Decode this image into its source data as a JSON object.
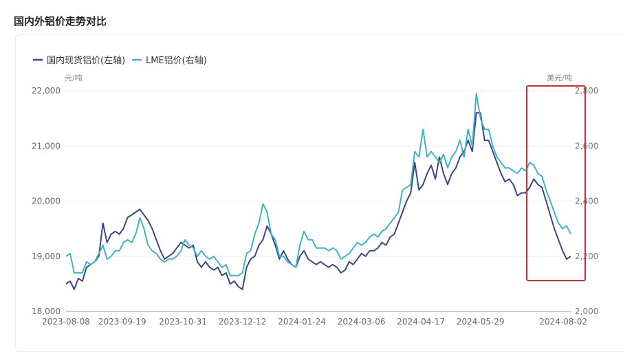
{
  "title": "国内外铝价走势对比",
  "chart_data": {
    "type": "line",
    "legend": [
      "国内现货铝价(左轴)",
      "LME铝价(右轴)"
    ],
    "legend_position": "top-left",
    "left_unit": "元/吨",
    "right_unit": "美元/吨",
    "left_ylim": [
      18000,
      22000
    ],
    "right_ylim": [
      2000,
      2800
    ],
    "left_ticks": [
      "18,000",
      "19,000",
      "20,000",
      "21,000",
      "22,000"
    ],
    "right_ticks": [
      "2,000",
      "2,200",
      "2,400",
      "2,600",
      "2,800"
    ],
    "x_ticks": [
      {
        "label": "2023-08-08",
        "index": 0
      },
      {
        "label": "2023-09-19",
        "index": 13.7
      },
      {
        "label": "2023-10-31",
        "index": 28.5
      },
      {
        "label": "2023-12-12",
        "index": 43
      },
      {
        "label": "2024-01-24",
        "index": 57.5
      },
      {
        "label": "2024-03-06",
        "index": 72
      },
      {
        "label": "2024-04-17",
        "index": 86.5
      },
      {
        "label": "2024-05-29",
        "index": 101
      },
      {
        "label": "2024-08-02",
        "index": 122
      }
    ],
    "series": [
      {
        "name": "国内现货铝价(左轴)",
        "axis": "left",
        "color": "#3b4487",
        "values": [
          18500,
          18550,
          18400,
          18600,
          18550,
          18800,
          18850,
          18900,
          19000,
          19600,
          19250,
          19400,
          19450,
          19400,
          19500,
          19700,
          19750,
          19800,
          19850,
          19750,
          19650,
          19500,
          19300,
          19100,
          18950,
          19000,
          19050,
          19150,
          19250,
          19200,
          19150,
          19200,
          18900,
          18800,
          18900,
          18800,
          18750,
          18800,
          18650,
          18700,
          18500,
          18550,
          18450,
          18400,
          18800,
          18950,
          19000,
          19200,
          19300,
          19550,
          19400,
          19200,
          18950,
          19100,
          18950,
          18850,
          18800,
          19000,
          19100,
          18950,
          18900,
          18850,
          18900,
          18850,
          18800,
          18850,
          18800,
          18700,
          18750,
          18900,
          18850,
          18950,
          19050,
          19000,
          19100,
          19100,
          19150,
          19250,
          19200,
          19350,
          19400,
          19600,
          19800,
          20000,
          20150,
          20700,
          20200,
          20300,
          20500,
          20650,
          20400,
          20800,
          20500,
          20300,
          20500,
          20600,
          20800,
          20900,
          21100,
          20900,
          21600,
          21600,
          21100,
          21100,
          20900,
          20700,
          20500,
          20350,
          20400,
          20300,
          20100,
          20150,
          20150,
          20250,
          20400,
          20300,
          20250,
          20000,
          19750,
          19500,
          19300,
          19100,
          18950,
          19000
        ]
      },
      {
        "name": "LME铝价(右轴)",
        "axis": "right",
        "color": "#3db4c2",
        "values": [
          2200,
          2210,
          2140,
          2140,
          2140,
          2180,
          2170,
          2180,
          2210,
          2240,
          2190,
          2200,
          2220,
          2220,
          2250,
          2260,
          2250,
          2280,
          2340,
          2300,
          2240,
          2220,
          2210,
          2190,
          2180,
          2190,
          2190,
          2200,
          2220,
          2260,
          2240,
          2230,
          2200,
          2220,
          2200,
          2190,
          2200,
          2180,
          2160,
          2170,
          2130,
          2130,
          2130,
          2140,
          2210,
          2220,
          2280,
          2320,
          2390,
          2360,
          2280,
          2260,
          2200,
          2200,
          2180,
          2170,
          2160,
          2240,
          2290,
          2260,
          2260,
          2230,
          2230,
          2230,
          2220,
          2230,
          2220,
          2190,
          2200,
          2210,
          2230,
          2250,
          2240,
          2250,
          2270,
          2280,
          2270,
          2290,
          2300,
          2320,
          2340,
          2360,
          2440,
          2450,
          2460,
          2580,
          2560,
          2660,
          2560,
          2580,
          2560,
          2540,
          2570,
          2520,
          2560,
          2580,
          2620,
          2560,
          2660,
          2600,
          2790,
          2700,
          2660,
          2660,
          2600,
          2560,
          2540,
          2520,
          2520,
          2510,
          2500,
          2520,
          2510,
          2540,
          2530,
          2500,
          2490,
          2440,
          2400,
          2360,
          2320,
          2300,
          2310,
          2280
        ]
      }
    ],
    "highlight_color": "#e0262b"
  }
}
